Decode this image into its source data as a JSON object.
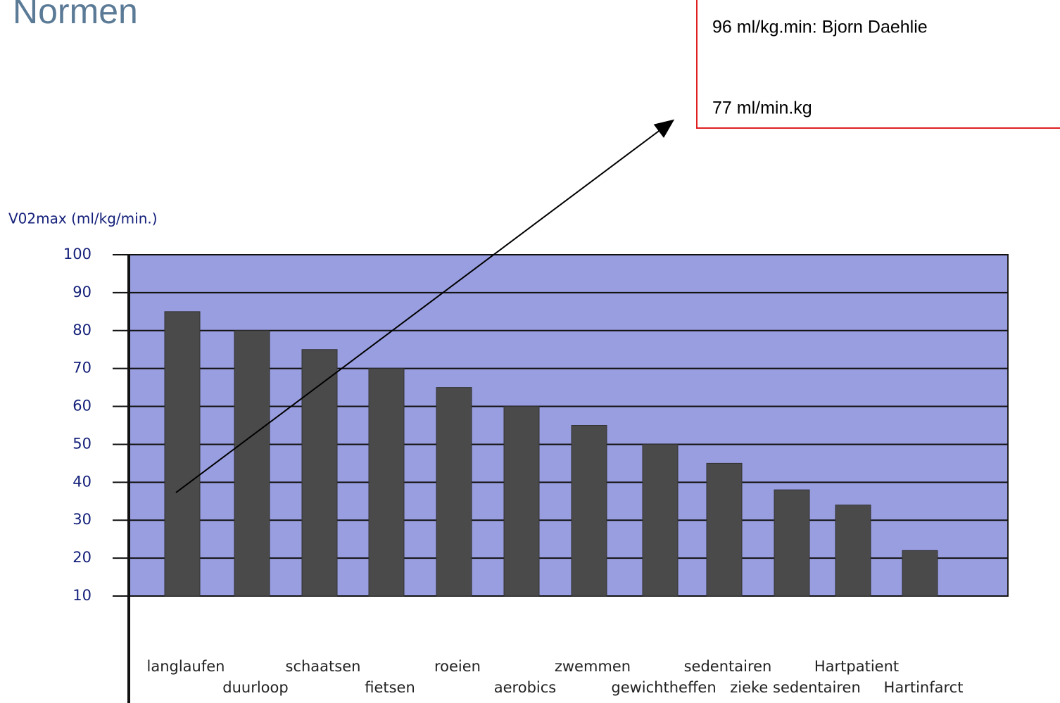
{
  "slide": {
    "title": "Normen"
  },
  "callout": {
    "lines": [
      "96 ml/kg.min: Bjorn Daehlie",
      "77 ml/min.kg"
    ]
  },
  "chart_data": {
    "type": "bar",
    "y_label": "V02max (ml/kg/min.)",
    "categories": [
      "langlaufen",
      "duurloop",
      "schaatsen",
      "fietsen",
      "roeien",
      "aerobics",
      "zwemmen",
      "gewichtheffen",
      "sedentairen",
      "zieke sedentairen",
      "Hartpatient",
      "Hartinfarct"
    ],
    "values": [
      85,
      80,
      75,
      70,
      65,
      60,
      55,
      50,
      45,
      38,
      34,
      22
    ],
    "color": "#4a4a4a",
    "background": "#999ee0",
    "ylim": [
      10,
      100
    ],
    "yticks": [
      10,
      20,
      30,
      40,
      50,
      60,
      70,
      80,
      90,
      100
    ],
    "grid": true
  }
}
